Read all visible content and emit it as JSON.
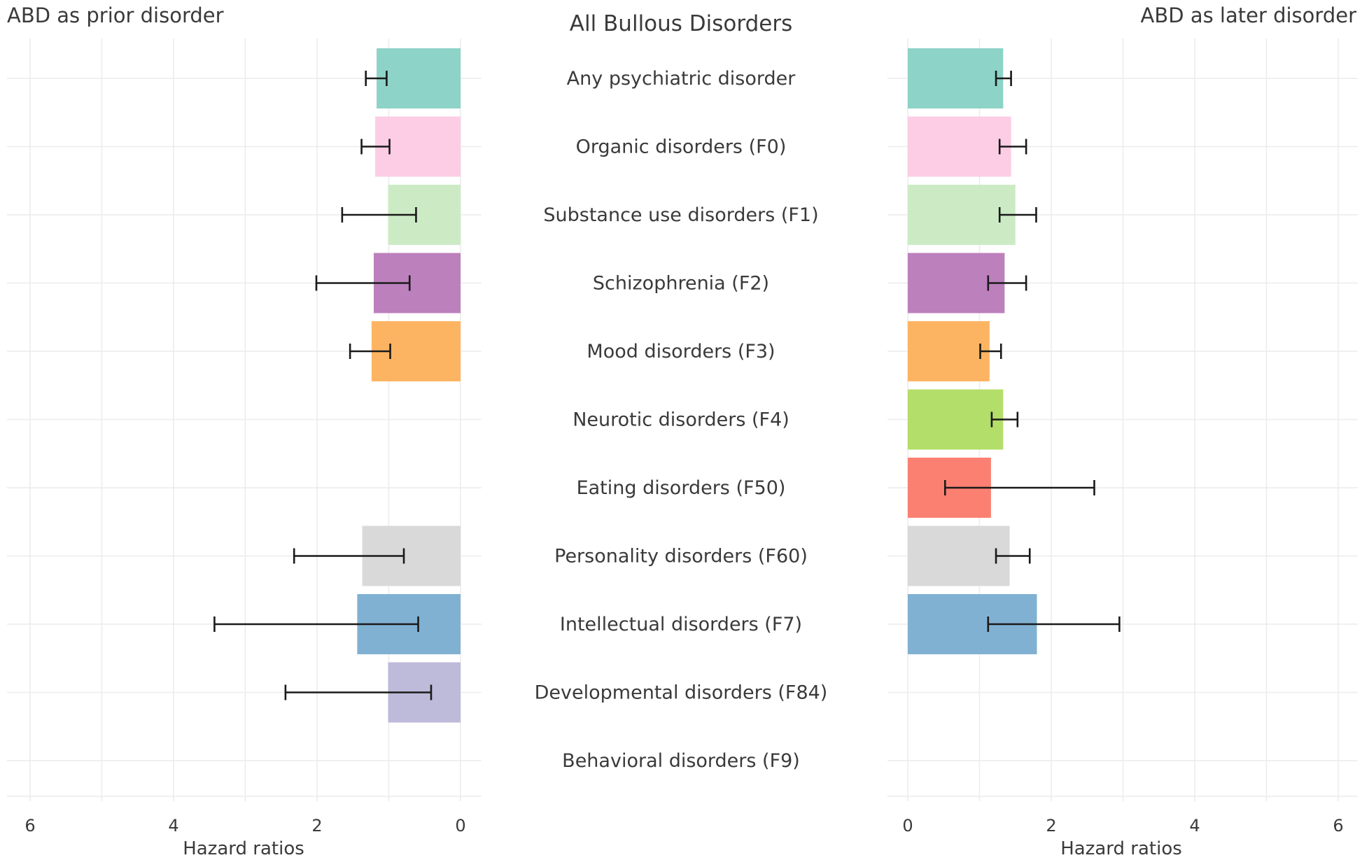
{
  "chart_data": {
    "type": "bar",
    "title": "All Bullous Disorders",
    "categories": [
      "Any psychiatric disorder",
      "Organic disorders (F0)",
      "Substance use disorders (F1)",
      "Schizophrenia (F2)",
      "Mood disorders (F3)",
      "Neurotic disorders (F4)",
      "Eating disorders (F50)",
      "Personality disorders (F60)",
      "Intellectual disorders (F7)",
      "Developmental disorders (F84)",
      "Behavioral disorders (F9)"
    ],
    "colors": [
      "#8dd3c7",
      "#fccde5",
      "#ccebc5",
      "#bc80bd",
      "#fdb462",
      "#b3de69",
      "#fb8072",
      "#d9d9d9",
      "#80b1d3",
      "#bebada",
      "#ffffb3"
    ],
    "panels": [
      {
        "name": "left",
        "subtitle": "ABD as prior disorder",
        "xlabel": "Hazard ratios",
        "xlim": [
          6,
          0
        ],
        "ticks": [
          6,
          4,
          2,
          0
        ],
        "grid": true,
        "values": [
          1.17,
          1.19,
          1.01,
          1.21,
          1.24,
          null,
          null,
          1.37,
          1.44,
          1.01,
          null
        ],
        "ci_lower": [
          1.03,
          0.99,
          0.62,
          0.71,
          0.98,
          null,
          null,
          0.79,
          0.59,
          0.41,
          null
        ],
        "ci_upper": [
          1.32,
          1.38,
          1.65,
          2.01,
          1.54,
          null,
          null,
          2.32,
          3.43,
          2.44,
          null
        ]
      },
      {
        "name": "right",
        "subtitle": "ABD as later disorder",
        "xlabel": "Hazard ratios",
        "xlim": [
          0,
          6
        ],
        "ticks": [
          0,
          2,
          4,
          6
        ],
        "grid": true,
        "values": [
          1.33,
          1.44,
          1.5,
          1.35,
          1.14,
          1.33,
          1.16,
          1.42,
          1.8,
          null,
          null
        ],
        "ci_lower": [
          1.23,
          1.28,
          1.28,
          1.12,
          1.01,
          1.17,
          0.52,
          1.23,
          1.12,
          null,
          null
        ],
        "ci_upper": [
          1.44,
          1.65,
          1.79,
          1.65,
          1.3,
          1.53,
          2.6,
          1.7,
          2.95,
          null,
          null
        ]
      }
    ]
  }
}
